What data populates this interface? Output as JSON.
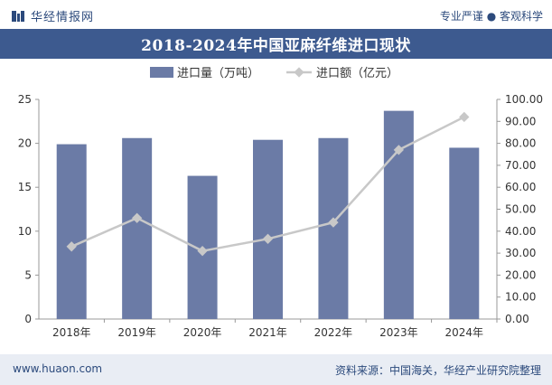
{
  "header": {
    "site_name": "华经情报网",
    "tagline": "专业严谨 ● 客观科学"
  },
  "title": "2018-2024年中国亚麻纤维进口现状",
  "footer": {
    "website": "www.huaon.com",
    "source": "资料来源：中国海关，华经产业研究院整理"
  },
  "colors": {
    "bar": "#6b7ba6",
    "line": "#c8c8c8",
    "title_bg": "#3d5a8f",
    "brand": "#2c4a7c"
  },
  "chart_data": {
    "type": "bar",
    "categories": [
      "2018年",
      "2019年",
      "2020年",
      "2021年",
      "2022年",
      "2023年",
      "2024年"
    ],
    "series": [
      {
        "name": "进口量（万吨）",
        "type": "bar",
        "axis": "left",
        "values": [
          19.9,
          20.6,
          16.3,
          20.4,
          20.6,
          23.7,
          19.5
        ]
      },
      {
        "name": "进口额（亿元）",
        "type": "line",
        "axis": "right",
        "values": [
          33.0,
          46.0,
          31.0,
          36.5,
          44.0,
          77.0,
          92.0
        ]
      }
    ],
    "y_left": {
      "min": 0,
      "max": 25,
      "ticks": [
        "0",
        "5",
        "10",
        "15",
        "20",
        "25"
      ]
    },
    "y_right": {
      "min": 0,
      "max": 100,
      "ticks": [
        "0.00",
        "10.00",
        "20.00",
        "30.00",
        "40.00",
        "50.00",
        "60.00",
        "70.00",
        "80.00",
        "90.00",
        "100.00"
      ]
    },
    "legend_position": "top-left",
    "grid": false
  }
}
